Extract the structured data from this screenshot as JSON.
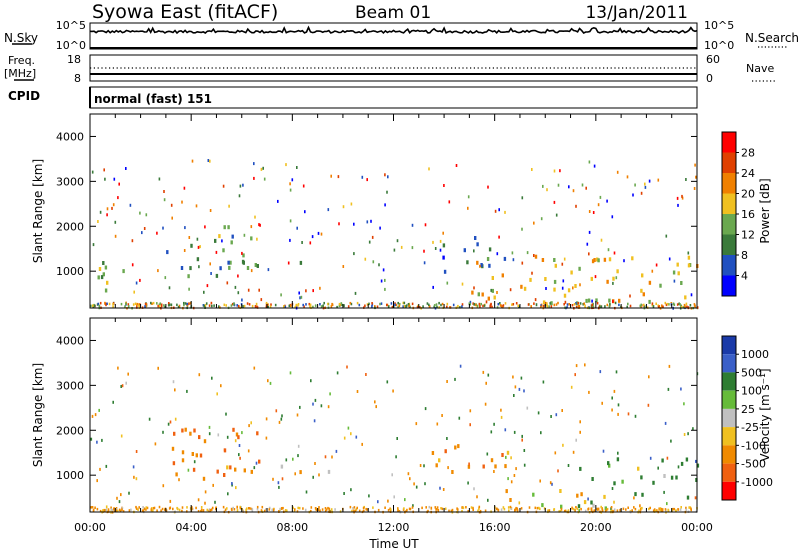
{
  "header": {
    "station": "Syowa East (fitACF)",
    "beam": "Beam 01",
    "date": "13/Jan/2011"
  },
  "top_panels": {
    "nsky_label": "N.Sky",
    "nsky_ticks": [
      "10^5",
      "10^0"
    ],
    "nsearch_label": "N.Search",
    "nsearch_ticks": [
      "10^5",
      "10^0"
    ],
    "freq_label": "Freq.",
    "freq_unit": "[MHz]",
    "freq_ticks": [
      "18",
      "8"
    ],
    "nave_label": "Nave",
    "nave_ticks": [
      "60",
      "0"
    ],
    "cpid_label": "CPID",
    "cpid_text": "normal (fast) 151"
  },
  "axes": {
    "x_label": "Time UT",
    "x_ticks": [
      "00:00",
      "04:00",
      "08:00",
      "12:00",
      "16:00",
      "20:00",
      "00:00"
    ],
    "y_label": "Slant Range [km]",
    "y_ticks": [
      "1000",
      "2000",
      "3000",
      "4000"
    ]
  },
  "power_scale": {
    "label": "Power [dB]",
    "ticks": [
      "4",
      "8",
      "12",
      "16",
      "20",
      "24",
      "28"
    ],
    "colors": [
      "#0000ff",
      "#2050c0",
      "#3a7a3a",
      "#6aa84f",
      "#f0c020",
      "#f08000",
      "#e04000",
      "#ff0000"
    ]
  },
  "velocity_scale": {
    "label": "Velocity [m s⁻¹]",
    "ticks": [
      "1000",
      "500",
      "100",
      "25",
      "-25",
      "-100",
      "-500",
      "-1000"
    ],
    "colors": [
      "#1a3aa8",
      "#3a5fc8",
      "#2e7d32",
      "#66bb3a",
      "#c0c0c0",
      "#f0c020",
      "#f08a00",
      "#f06010",
      "#ff0000"
    ]
  },
  "chart_data": [
    {
      "type": "heatmap",
      "title": "Syowa East (fitACF) Beam 01 13/Jan/2011",
      "xlabel": "Time UT",
      "ylabel": "Slant Range [km]",
      "xlim": [
        0,
        24
      ],
      "ylim": [
        180,
        4500
      ],
      "colorbar": "Power [dB]",
      "colorbar_range": [
        0,
        32
      ],
      "regions": [
        {
          "t": [
            0.2,
            1.3
          ],
          "r": [
            250,
            1500
          ],
          "v": 14
        },
        {
          "t": [
            3.0,
            6.8
          ],
          "r": [
            900,
            2100
          ],
          "v": 12
        },
        {
          "t": [
            3.5,
            10.0
          ],
          "r": [
            1100,
            1250
          ],
          "v": 10
        },
        {
          "t": [
            13.5,
            16.5
          ],
          "r": [
            1000,
            1800
          ],
          "v": 8
        },
        {
          "t": [
            15.0,
            24.0
          ],
          "r": [
            300,
            1400
          ],
          "v": 18
        },
        {
          "t": [
            18.0,
            20.5
          ],
          "r": [
            200,
            400
          ],
          "v": 26
        }
      ]
    },
    {
      "type": "heatmap",
      "title": "",
      "xlabel": "Time UT",
      "ylabel": "Slant Range [km]",
      "xlim": [
        0,
        24
      ],
      "ylim": [
        180,
        4500
      ],
      "colorbar": "Velocity [m s⁻¹]",
      "colorbar_range": [
        -1250,
        1250
      ],
      "regions": [
        {
          "t": [
            3.0,
            6.8
          ],
          "r": [
            900,
            2100
          ],
          "v": -500
        },
        {
          "t": [
            4.0,
            10.0
          ],
          "r": [
            1100,
            1250
          ],
          "v": 0
        },
        {
          "t": [
            13.5,
            16.5
          ],
          "r": [
            1000,
            1800
          ],
          "v": -300
        },
        {
          "t": [
            16.0,
            20.5
          ],
          "r": [
            300,
            700
          ],
          "v": -150
        },
        {
          "t": [
            19.0,
            24.0
          ],
          "r": [
            300,
            1400
          ],
          "v": 200
        }
      ]
    }
  ]
}
